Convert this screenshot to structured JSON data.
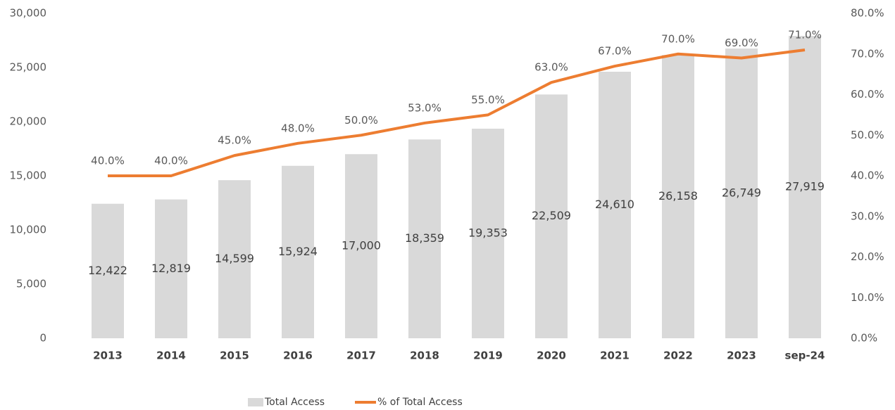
{
  "chart_data": {
    "type": "bar_line",
    "categories": [
      "2013",
      "2014",
      "2015",
      "2016",
      "2017",
      "2018",
      "2019",
      "2020",
      "2021",
      "2022",
      "2023",
      "sep-24"
    ],
    "series": [
      {
        "name": "Total Access",
        "type": "bar",
        "color": "#d9d9d9",
        "values": [
          12422,
          12819,
          14599,
          15924,
          17000,
          18359,
          19353,
          22509,
          24610,
          26158,
          26749,
          27919
        ],
        "value_labels": [
          "12,422",
          "12,819",
          "14,599",
          "15,924",
          "17,000",
          "18,359",
          "19,353",
          "22,509",
          "24,610",
          "26,158",
          "26,749",
          "27,919"
        ]
      },
      {
        "name": "% of Total Access",
        "type": "line",
        "axis": "y2",
        "color": "#ed7d31",
        "values": [
          40,
          40,
          45,
          48,
          50,
          53,
          55,
          63,
          67,
          70,
          69,
          71
        ],
        "value_labels": [
          "40.0%",
          "40.0%",
          "45.0%",
          "48.0%",
          "50.0%",
          "53.0%",
          "55.0%",
          "63.0%",
          "67.0%",
          "70.0%",
          "69.0%",
          "71.0%"
        ]
      }
    ],
    "ylim": [
      0,
      30000
    ],
    "yticks": [
      0,
      {
        "value": 5000,
        "label": "5,000"
      },
      {
        "value": 10000,
        "label": "10,000"
      },
      {
        "value": 15000,
        "label": "15,000"
      },
      {
        "value": 20000,
        "label": "20,000"
      },
      {
        "value": 25000,
        "label": "25,000"
      },
      {
        "value": 30000,
        "label": "30,000"
      }
    ],
    "y2lim": [
      0,
      80
    ],
    "y2ticks": [
      {
        "value": 0,
        "label": "0.0%"
      },
      {
        "value": 10,
        "label": "10.0%"
      },
      {
        "value": 20,
        "label": "20.0%"
      },
      {
        "value": 30,
        "label": "30.0%"
      },
      {
        "value": 40,
        "label": "40.0%"
      },
      {
        "value": 50,
        "label": "50.0%"
      },
      {
        "value": 60,
        "label": "60.0%"
      },
      {
        "value": 70,
        "label": "70.0%"
      },
      {
        "value": 80,
        "label": "80.0%"
      }
    ],
    "legend": "bottom"
  }
}
